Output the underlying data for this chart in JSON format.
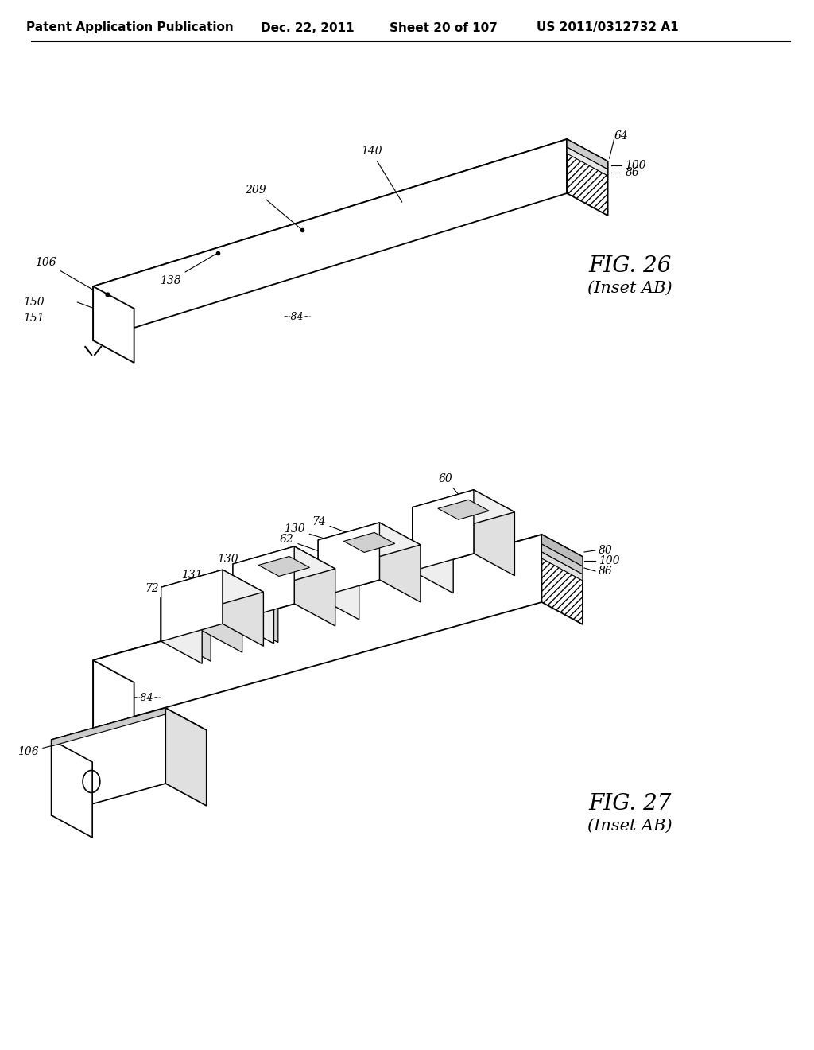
{
  "background_color": "#ffffff",
  "header_text": "Patent Application Publication",
  "header_date": "Dec. 22, 2011",
  "header_sheet": "Sheet 20 of 107",
  "header_patent": "US 2011/0312732 A1",
  "fig26_title": "FIG. 26",
  "fig26_subtitle": "(Inset AB)",
  "fig27_title": "FIG. 27",
  "fig27_subtitle": "(Inset AB)",
  "font_size_header": 11,
  "font_size_label": 10,
  "font_size_fig": 18
}
